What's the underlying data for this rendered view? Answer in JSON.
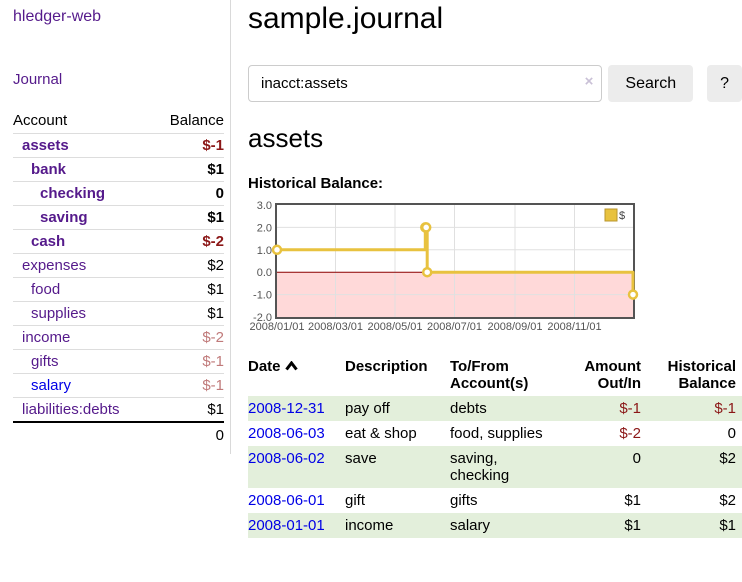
{
  "colors": {
    "link_purple": "#551a8b",
    "link_blue": "#0000e6",
    "negative_strong": "#8b1717",
    "negative_soft": "#c07a7a",
    "row_stripe_green": "#e3efdb",
    "button_bg": "#ececec",
    "chart_line_gold": "#e8c23f"
  },
  "app": {
    "brand": "hledger-web",
    "nav_journal": "Journal"
  },
  "sidebar": {
    "header": {
      "account": "Account",
      "balance": "Balance"
    },
    "accounts": [
      {
        "name": "assets",
        "balance": "$-1",
        "depth": 1,
        "in_current": true,
        "visited": true
      },
      {
        "name": "bank",
        "balance": "$1",
        "depth": 2,
        "in_current": true,
        "visited": true
      },
      {
        "name": "checking",
        "balance": "0",
        "depth": 3,
        "in_current": true,
        "visited": true
      },
      {
        "name": "saving",
        "balance": "$1",
        "depth": 3,
        "in_current": true,
        "visited": true
      },
      {
        "name": "cash",
        "balance": "$-2",
        "depth": 2,
        "in_current": true,
        "visited": true
      },
      {
        "name": "expenses",
        "balance": "$2",
        "depth": 1,
        "in_current": false,
        "visited": true
      },
      {
        "name": "food",
        "balance": "$1",
        "depth": 2,
        "in_current": false,
        "visited": true
      },
      {
        "name": "supplies",
        "balance": "$1",
        "depth": 2,
        "in_current": false,
        "visited": true
      },
      {
        "name": "income",
        "balance": "$-2",
        "depth": 1,
        "in_current": false,
        "visited": true
      },
      {
        "name": "gifts",
        "balance": "$-1",
        "depth": 2,
        "in_current": false,
        "visited": true
      },
      {
        "name": "salary",
        "balance": "$-1",
        "depth": 2,
        "in_current": false,
        "visited": false
      },
      {
        "name": "liabilities:debts",
        "balance": "$1",
        "depth": 1,
        "in_current": false,
        "visited": true
      }
    ],
    "total": "0"
  },
  "main": {
    "title": "sample.journal",
    "search": {
      "value": "inacct:assets",
      "clear_icon": "×",
      "search_button": "Search",
      "help_button": "?"
    },
    "account_title": "assets",
    "chart_heading": "Historical Balance:"
  },
  "chart_data": {
    "type": "line",
    "step": true,
    "title": "Historical Balance:",
    "series": [
      {
        "name": "$",
        "color": "#e8c23f",
        "points": [
          [
            "2008-01-01",
            1
          ],
          [
            "2008-06-01",
            2
          ],
          [
            "2008-06-02",
            2
          ],
          [
            "2008-06-03",
            0
          ],
          [
            "2008-12-31",
            -1
          ]
        ]
      }
    ],
    "x_range": [
      "2008-01-01",
      "2008-12-31"
    ],
    "x_tick_dates": [
      "2008-01-01",
      "2008-03-01",
      "2008-05-01",
      "2008-07-01",
      "2008-09-01",
      "2008-11-01"
    ],
    "x_tick_labels": [
      "2008/01/01",
      "2008/03/01",
      "2008/05/01",
      "2008/07/01",
      "2008/09/01",
      "2008/11/01"
    ],
    "y_ticks": [
      {
        "label": "3.0",
        "value": 3
      },
      {
        "label": "2.0",
        "value": 2
      },
      {
        "label": "1.0",
        "value": 1
      },
      {
        "label": "0.0",
        "value": 0
      },
      {
        "label": "-1.0",
        "value": -1
      },
      {
        "label": "-2.0",
        "value": -2
      }
    ],
    "ylim": [
      -2,
      3
    ],
    "grid": true,
    "legend": {
      "position": "top-right",
      "label": "$"
    },
    "negative_region_fill": "#ffd9d9",
    "zero_line_color": "#8b0000",
    "plot_border_color": "#545454",
    "gridline_color": "#e0e0e0",
    "tick_text_color": "#545454"
  },
  "register": {
    "columns": [
      {
        "label": "Date",
        "sort": "ascending"
      },
      {
        "label": "Description"
      },
      {
        "label": "To/From Account(s)"
      },
      {
        "label": "Amount Out/In"
      },
      {
        "label": "Historical Balance"
      }
    ],
    "rows": [
      {
        "date": "2008-12-31",
        "description": "pay off",
        "accounts": "debts",
        "amount": "$-1",
        "balance": "$-1"
      },
      {
        "date": "2008-06-03",
        "description": "eat & shop",
        "accounts": "food, supplies",
        "amount": "$-2",
        "balance": "0"
      },
      {
        "date": "2008-06-02",
        "description": "save",
        "accounts": "saving, checking",
        "amount": "0",
        "balance": "$2"
      },
      {
        "date": "2008-06-01",
        "description": "gift",
        "accounts": "gifts",
        "amount": "$1",
        "balance": "$2"
      },
      {
        "date": "2008-01-01",
        "description": "income",
        "accounts": "salary",
        "amount": "$1",
        "balance": "$1"
      }
    ]
  }
}
